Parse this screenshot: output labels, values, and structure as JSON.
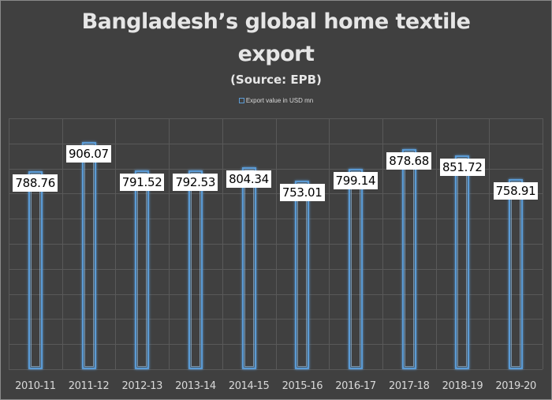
{
  "chart_data": {
    "type": "bar",
    "title": "Bangladesh’s global home textile export",
    "title_lines": [
      "Bangladesh’s global home textile",
      "export"
    ],
    "subtitle": "(Source: EPB)",
    "legend": [
      "Export value in USD mn"
    ],
    "legend_position": "top",
    "xlabel": "",
    "ylabel": "",
    "categories": [
      "2010-11",
      "2011-12",
      "2012-13",
      "2013-14",
      "2014-15",
      "2015-16",
      "2016-17",
      "2017-18",
      "2018-19",
      "2019-20"
    ],
    "series": [
      {
        "name": "Export value in USD mn",
        "values": [
          788.76,
          906.07,
          791.52,
          792.53,
          804.34,
          753.01,
          799.14,
          878.68,
          851.72,
          758.91
        ]
      }
    ],
    "value_labels": [
      "788.76",
      "906.07",
      "791.52",
      "792.53",
      "804.34",
      "753.01",
      "799.14",
      "878.68",
      "851.72",
      "758.91"
    ],
    "ylim": [
      0,
      1000
    ],
    "y_gridline_step": 100,
    "grid": true,
    "y_axis_labels_visible": false,
    "colors": {
      "background": "#404040",
      "bar_outline": "#5b9bd5",
      "gridline": "#595959",
      "text": "#d9d9d9",
      "label_box": "#ffffff"
    }
  }
}
